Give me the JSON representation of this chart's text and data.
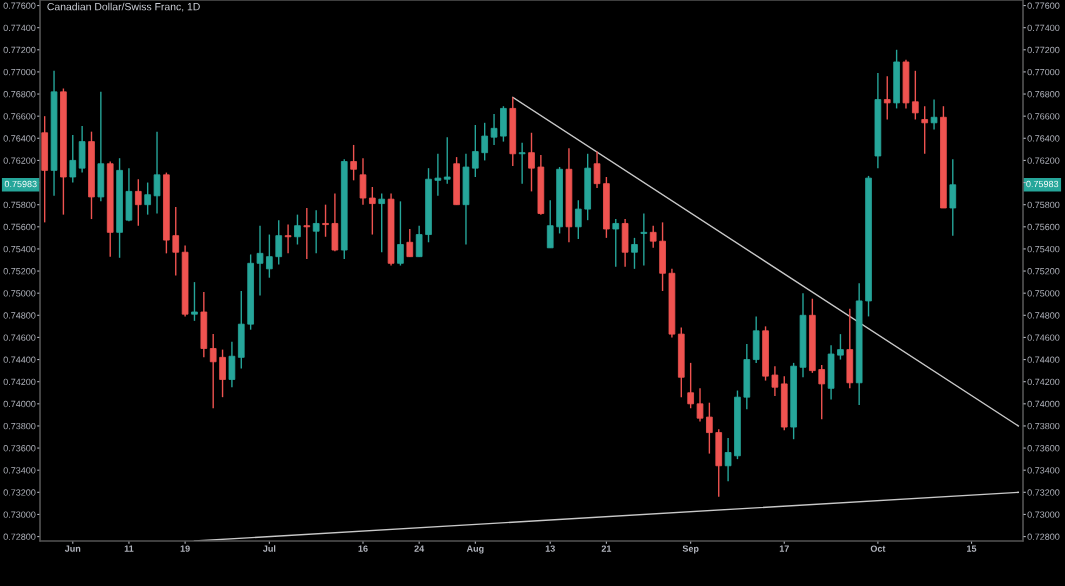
{
  "chart_data": {
    "type": "candlestick",
    "title": "Canadian Dollar/Swiss Franc, 1D",
    "categories": [
      null,
      null,
      null,
      "Jun",
      null,
      null,
      null,
      null,
      null,
      "11",
      null,
      null,
      null,
      null,
      null,
      "19",
      null,
      null,
      null,
      null,
      null,
      null,
      null,
      null,
      "Jul",
      null,
      null,
      null,
      null,
      null,
      null,
      null,
      null,
      null,
      "16",
      null,
      null,
      null,
      null,
      null,
      "24",
      null,
      null,
      null,
      null,
      null,
      "Aug",
      null,
      null,
      null,
      null,
      null,
      null,
      null,
      "13",
      null,
      null,
      null,
      null,
      null,
      "21",
      null,
      null,
      null,
      null,
      null,
      null,
      null,
      null,
      "Sep",
      null,
      null,
      null,
      null,
      null,
      null,
      null,
      null,
      null,
      "17",
      null,
      null,
      null,
      null,
      null,
      null,
      null,
      null,
      null,
      "Oct",
      null,
      null,
      null,
      null,
      null,
      null,
      null,
      null,
      null,
      "15",
      null,
      null,
      null,
      null,
      null
    ],
    "ohlc": [
      [
        0.7645,
        0.766,
        0.7564,
        0.7611
      ],
      [
        0.7611,
        0.7701,
        0.7588,
        0.7682
      ],
      [
        0.7682,
        0.7685,
        0.7571,
        0.7605
      ],
      [
        0.7605,
        0.7643,
        0.76,
        0.762
      ],
      [
        0.7613,
        0.7651,
        0.7609,
        0.7637
      ],
      [
        0.7637,
        0.7646,
        0.7567,
        0.7587
      ],
      [
        0.7587,
        0.7682,
        0.7583,
        0.7617
      ],
      [
        0.7617,
        0.7619,
        0.7533,
        0.7555
      ],
      [
        0.7555,
        0.7622,
        0.7532,
        0.7611
      ],
      [
        0.7566,
        0.7613,
        0.7565,
        0.7592
      ],
      [
        0.7592,
        0.7603,
        0.7561,
        0.758
      ],
      [
        0.758,
        0.76,
        0.7571,
        0.7589
      ],
      [
        0.7588,
        0.7646,
        0.7572,
        0.7607
      ],
      [
        0.7607,
        0.7609,
        0.7536,
        0.7548
      ],
      [
        0.7552,
        0.7578,
        0.7516,
        0.7537
      ],
      [
        0.7537,
        0.7543,
        0.7479,
        0.7481
      ],
      [
        0.7481,
        0.751,
        0.7475,
        0.7483
      ],
      [
        0.7483,
        0.7501,
        0.7442,
        0.745
      ],
      [
        0.745,
        0.7463,
        0.7396,
        0.7438
      ],
      [
        0.7442,
        0.7449,
        0.7406,
        0.7422
      ],
      [
        0.7422,
        0.7456,
        0.7415,
        0.7443
      ],
      [
        0.7442,
        0.7502,
        0.7432,
        0.7472
      ],
      [
        0.7472,
        0.7535,
        0.7467,
        0.7527
      ],
      [
        0.7527,
        0.7561,
        0.7498,
        0.7536
      ],
      [
        0.7522,
        0.7553,
        0.7514,
        0.7533
      ],
      [
        0.7533,
        0.7566,
        0.7526,
        0.7552
      ],
      [
        0.7552,
        0.7562,
        0.7536,
        0.7551
      ],
      [
        0.7551,
        0.7571,
        0.7544,
        0.7561
      ],
      [
        0.7561,
        0.7577,
        0.7531,
        0.756
      ],
      [
        0.7556,
        0.7575,
        0.7536,
        0.7563
      ],
      [
        0.7563,
        0.758,
        0.7551,
        0.7562
      ],
      [
        0.7563,
        0.759,
        0.7538,
        0.7539
      ],
      [
        0.7539,
        0.7621,
        0.7531,
        0.7619
      ],
      [
        0.7619,
        0.7634,
        0.7602,
        0.7612
      ],
      [
        0.7607,
        0.7622,
        0.758,
        0.7586
      ],
      [
        0.7586,
        0.7596,
        0.7553,
        0.7581
      ],
      [
        0.7581,
        0.759,
        0.7537,
        0.7585
      ],
      [
        0.7585,
        0.759,
        0.7525,
        0.7527
      ],
      [
        0.7527,
        0.7583,
        0.7525,
        0.7544
      ],
      [
        0.7546,
        0.7558,
        0.7533,
        0.7533
      ],
      [
        0.7533,
        0.7561,
        0.7533,
        0.7553
      ],
      [
        0.7553,
        0.7613,
        0.7546,
        0.7603
      ],
      [
        0.7602,
        0.7626,
        0.7588,
        0.7604
      ],
      [
        0.7603,
        0.7641,
        0.7599,
        0.7605
      ],
      [
        0.7617,
        0.7623,
        0.758,
        0.758
      ],
      [
        0.758,
        0.7626,
        0.7544,
        0.7614
      ],
      [
        0.7613,
        0.7652,
        0.7605,
        0.7628
      ],
      [
        0.7627,
        0.7654,
        0.762,
        0.7642
      ],
      [
        0.7641,
        0.7662,
        0.7634,
        0.7649
      ],
      [
        0.7642,
        0.7669,
        0.7637,
        0.7667
      ],
      [
        0.7667,
        0.7677,
        0.7615,
        0.7626
      ],
      [
        0.7626,
        0.7636,
        0.7599,
        0.7627
      ],
      [
        0.7627,
        0.7645,
        0.7592,
        0.7613
      ],
      [
        0.7614,
        0.7625,
        0.7571,
        0.7572
      ],
      [
        0.7541,
        0.7584,
        0.7541,
        0.7561
      ],
      [
        0.756,
        0.7614,
        0.7554,
        0.7612
      ],
      [
        0.7612,
        0.7631,
        0.7546,
        0.756
      ],
      [
        0.756,
        0.7584,
        0.7549,
        0.7576
      ],
      [
        0.7576,
        0.7626,
        0.7566,
        0.7613
      ],
      [
        0.7617,
        0.7628,
        0.7595,
        0.7599
      ],
      [
        0.7599,
        0.7605,
        0.755,
        0.7558
      ],
      [
        0.7558,
        0.7567,
        0.7524,
        0.7563
      ],
      [
        0.7563,
        0.7567,
        0.7524,
        0.7537
      ],
      [
        0.7537,
        0.755,
        0.7522,
        0.7544
      ],
      [
        0.7554,
        0.7572,
        0.7525,
        0.7555
      ],
      [
        0.7555,
        0.7561,
        0.7541,
        0.7547
      ],
      [
        0.7547,
        0.7564,
        0.7502,
        0.7518
      ],
      [
        0.7518,
        0.7522,
        0.746,
        0.7463
      ],
      [
        0.7463,
        0.7469,
        0.7406,
        0.7424
      ],
      [
        0.741,
        0.7437,
        0.7396,
        0.74
      ],
      [
        0.74,
        0.7414,
        0.7384,
        0.7387
      ],
      [
        0.7388,
        0.7401,
        0.7355,
        0.7374
      ],
      [
        0.7374,
        0.7377,
        0.7316,
        0.7344
      ],
      [
        0.7344,
        0.7369,
        0.733,
        0.7356
      ],
      [
        0.7353,
        0.7412,
        0.735,
        0.7406
      ],
      [
        0.7406,
        0.7454,
        0.7395,
        0.744
      ],
      [
        0.744,
        0.7479,
        0.7437,
        0.7466
      ],
      [
        0.7466,
        0.747,
        0.7421,
        0.7425
      ],
      [
        0.7426,
        0.7434,
        0.7407,
        0.7415
      ],
      [
        0.7418,
        0.7425,
        0.7376,
        0.7379
      ],
      [
        0.7379,
        0.7437,
        0.7368,
        0.7434
      ],
      [
        0.7433,
        0.75,
        0.7424,
        0.748
      ],
      [
        0.748,
        0.7495,
        0.7428,
        0.743
      ],
      [
        0.7431,
        0.7435,
        0.7386,
        0.7418
      ],
      [
        0.7414,
        0.7453,
        0.7404,
        0.7445
      ],
      [
        0.7444,
        0.7463,
        0.744,
        0.7449
      ],
      [
        0.7449,
        0.7486,
        0.7414,
        0.7419
      ],
      [
        0.7419,
        0.7509,
        0.7399,
        0.7493
      ],
      [
        0.7493,
        0.7606,
        0.7479,
        0.7604
      ],
      [
        0.7624,
        0.7699,
        0.7613,
        0.7675
      ],
      [
        0.7675,
        0.7696,
        0.7657,
        0.7672
      ],
      [
        0.7672,
        0.772,
        0.7667,
        0.7709
      ],
      [
        0.7709,
        0.7711,
        0.7667,
        0.7672
      ],
      [
        0.7673,
        0.7701,
        0.7657,
        0.7663
      ],
      [
        0.7657,
        0.7669,
        0.7626,
        0.7654
      ],
      [
        0.7654,
        0.7675,
        0.7648,
        0.7659
      ],
      [
        0.7659,
        0.7669,
        0.7577,
        0.7577
      ],
      [
        0.7577,
        0.7621,
        0.7552,
        0.7598
      ],
      null,
      null,
      null,
      null,
      null,
      null,
      null
    ],
    "colors": [
      "#ef5350",
      "#26a69a",
      "#ef5350",
      "#26a69a",
      "#26a69a",
      "#ef5350",
      "#26a69a",
      "#ef5350",
      "#26a69a",
      "#26a69a",
      "#ef5350",
      "#26a69a",
      "#26a69a",
      "#ef5350",
      "#ef5350",
      "#ef5350",
      "#26a69a",
      "#ef5350",
      "#ef5350",
      "#ef5350",
      "#26a69a",
      "#26a69a",
      "#26a69a",
      "#26a69a",
      "#26a69a",
      "#26a69a",
      "#ef5350",
      "#26a69a",
      "#ef5350",
      "#26a69a",
      "#ef5350",
      "#ef5350",
      "#26a69a",
      "#ef5350",
      "#ef5350",
      "#ef5350",
      "#26a69a",
      "#ef5350",
      "#26a69a",
      "#ef5350",
      "#26a69a",
      "#26a69a",
      "#26a69a",
      "#26a69a",
      "#ef5350",
      "#26a69a",
      "#26a69a",
      "#26a69a",
      "#26a69a",
      "#26a69a",
      "#ef5350",
      "#26a69a",
      "#ef5350",
      "#ef5350",
      "#26a69a",
      "#26a69a",
      "#ef5350",
      "#26a69a",
      "#26a69a",
      "#ef5350",
      "#ef5350",
      "#26a69a",
      "#ef5350",
      "#26a69a",
      "#26a69a",
      "#ef5350",
      "#ef5350",
      "#ef5350",
      "#ef5350",
      "#ef5350",
      "#ef5350",
      "#ef5350",
      "#ef5350",
      "#26a69a",
      "#26a69a",
      "#26a69a",
      "#26a69a",
      "#ef5350",
      "#ef5350",
      "#ef5350",
      "#26a69a",
      "#26a69a",
      "#ef5350",
      "#ef5350",
      "#26a69a",
      "#26a69a",
      "#ef5350",
      "#26a69a",
      "#26a69a",
      "#26a69a",
      "#ef5350",
      "#26a69a",
      "#ef5350",
      "#ef5350",
      "#ef5350",
      "#26a69a",
      "#ef5350",
      "#26a69a",
      null,
      null,
      null,
      null,
      null,
      null,
      null
    ],
    "series": [
      {
        "type": "line",
        "values": [
          null,
          null,
          null,
          null,
          null,
          null,
          null,
          null,
          null,
          null,
          null,
          null,
          null,
          null,
          null,
          null,
          null,
          null,
          null,
          null,
          null,
          null,
          null,
          null,
          null,
          null,
          null,
          null,
          null,
          null,
          null,
          null,
          null,
          null,
          null,
          null,
          null,
          null,
          null,
          null,
          null,
          null,
          null,
          null,
          null,
          null,
          null,
          null,
          null,
          null,
          0.7677,
          null,
          null,
          null,
          null,
          null,
          null,
          null,
          null,
          null,
          null,
          null,
          null,
          null,
          null,
          null,
          null,
          null,
          null,
          null,
          null,
          null,
          null,
          null,
          null,
          null,
          null,
          null,
          null,
          null,
          null,
          null,
          null,
          null,
          null,
          null,
          null,
          null,
          null,
          null,
          null,
          null,
          null,
          null,
          null,
          null,
          null,
          null,
          null,
          null,
          null,
          null,
          null,
          null,
          0.738
        ],
        "color": "#c8c8c8"
      },
      {
        "type": "line",
        "values": [
          null,
          null,
          null,
          null,
          null,
          null,
          null,
          null,
          null,
          null,
          null,
          null,
          null,
          null,
          null,
          null,
          0.7276,
          null,
          null,
          null,
          null,
          null,
          null,
          null,
          null,
          null,
          null,
          null,
          null,
          null,
          null,
          null,
          null,
          null,
          null,
          null,
          null,
          null,
          null,
          null,
          null,
          null,
          null,
          null,
          null,
          null,
          null,
          null,
          null,
          null,
          null,
          null,
          null,
          null,
          null,
          null,
          null,
          null,
          null,
          null,
          null,
          null,
          null,
          null,
          null,
          null,
          null,
          null,
          null,
          null,
          null,
          null,
          null,
          null,
          null,
          null,
          null,
          null,
          null,
          null,
          null,
          null,
          null,
          null,
          null,
          null,
          null,
          null,
          null,
          null,
          null,
          null,
          null,
          null,
          null,
          null,
          null,
          null,
          null,
          null,
          null,
          null,
          null,
          null,
          0.732
        ],
        "color": "#c8c8c8"
      }
    ],
    "annotations": [
      "0.75983"
    ],
    "ylim": [
      0.7276,
      0.7765
    ],
    "yticks": [
      {
        "value": 0.728,
        "label": "0.72800"
      },
      {
        "value": 0.73,
        "label": "0.73000"
      },
      {
        "value": 0.732,
        "label": "0.73200"
      },
      {
        "value": 0.734,
        "label": "0.73400"
      },
      {
        "value": 0.736,
        "label": "0.73600"
      },
      {
        "value": 0.738,
        "label": "0.73800"
      },
      {
        "value": 0.74,
        "label": "0.74000"
      },
      {
        "value": 0.742,
        "label": "0.74200"
      },
      {
        "value": 0.744,
        "label": "0.74400"
      },
      {
        "value": 0.746,
        "label": "0.74600"
      },
      {
        "value": 0.748,
        "label": "0.74800"
      },
      {
        "value": 0.75,
        "label": "0.75000"
      },
      {
        "value": 0.752,
        "label": "0.75200"
      },
      {
        "value": 0.754,
        "label": "0.75400"
      },
      {
        "value": 0.756,
        "label": "0.75600"
      },
      {
        "value": 0.758,
        "label": "0.75800"
      },
      {
        "value": 0.76,
        "label": null
      },
      {
        "value": 0.762,
        "label": "0.76200"
      },
      {
        "value": 0.764,
        "label": "0.76400"
      },
      {
        "value": 0.766,
        "label": "0.76600"
      },
      {
        "value": 0.768,
        "label": "0.76800"
      },
      {
        "value": 0.77,
        "label": "0.77000"
      },
      {
        "value": 0.772,
        "label": "0.77200"
      },
      {
        "value": 0.774,
        "label": "0.77400"
      },
      {
        "value": 0.776,
        "label": "0.77600"
      }
    ],
    "y2lim": [
      0.7276,
      0.7765
    ],
    "y2ticks": [
      {
        "value": 0.728,
        "label": "0.72800"
      },
      {
        "value": 0.73,
        "label": "0.73000"
      },
      {
        "value": 0.732,
        "label": "0.73200"
      },
      {
        "value": 0.734,
        "label": "0.73400"
      },
      {
        "value": 0.736,
        "label": "0.73600"
      },
      {
        "value": 0.738,
        "label": "0.73800"
      },
      {
        "value": 0.74,
        "label": "0.74000"
      },
      {
        "value": 0.742,
        "label": "0.74200"
      },
      {
        "value": 0.744,
        "label": "0.74400"
      },
      {
        "value": 0.746,
        "label": "0.74600"
      },
      {
        "value": 0.748,
        "label": "0.74800"
      },
      {
        "value": 0.75,
        "label": "0.75000"
      },
      {
        "value": 0.752,
        "label": "0.75200"
      },
      {
        "value": 0.754,
        "label": "0.75400"
      },
      {
        "value": 0.756,
        "label": "0.75600"
      },
      {
        "value": 0.758,
        "label": "0.75800"
      },
      {
        "value": 0.76,
        "label": null
      },
      {
        "value": 0.762,
        "label": "0.76200"
      },
      {
        "value": 0.764,
        "label": "0.76400"
      },
      {
        "value": 0.766,
        "label": "0.76600"
      },
      {
        "value": 0.768,
        "label": "0.76800"
      },
      {
        "value": 0.77,
        "label": "0.77000"
      },
      {
        "value": 0.772,
        "label": "0.77200"
      },
      {
        "value": 0.774,
        "label": "0.77400"
      },
      {
        "value": 0.776,
        "label": "0.77600"
      }
    ],
    "grid": false
  }
}
